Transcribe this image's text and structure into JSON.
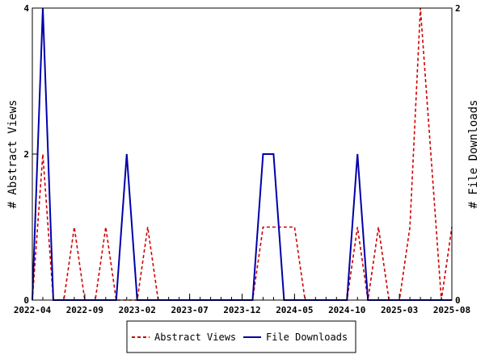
{
  "chart_data": {
    "type": "line",
    "x_tick_labels": [
      "2022-04",
      "2022-09",
      "2023-02",
      "2023-07",
      "2023-12",
      "2024-05",
      "2024-10",
      "2025-03",
      "2025-08"
    ],
    "x_tick_months": [
      0,
      5,
      10,
      15,
      20,
      25,
      30,
      35,
      40
    ],
    "left_axis": {
      "label": "# Abstract Views",
      "ylim": [
        0,
        4
      ],
      "ticks": [
        "0",
        "2",
        "4"
      ]
    },
    "right_axis": {
      "label": "# File Downloads",
      "ylim": [
        0,
        2
      ],
      "ticks": [
        "0",
        "2"
      ]
    },
    "grid": false,
    "legend_placement": "bottom-center",
    "series": [
      {
        "name": "Abstract Views",
        "axis": "left",
        "color": "#cc0000",
        "style": "dashed",
        "points": [
          [
            0,
            0
          ],
          [
            1,
            2
          ],
          [
            2,
            0
          ],
          [
            3,
            0
          ],
          [
            4,
            1
          ],
          [
            5,
            0
          ],
          [
            6,
            0
          ],
          [
            7,
            1
          ],
          [
            8,
            0
          ],
          [
            9,
            0
          ],
          [
            10,
            0
          ],
          [
            11,
            1
          ],
          [
            12,
            0
          ],
          [
            13,
            0
          ],
          [
            14,
            0
          ],
          [
            15,
            0
          ],
          [
            16,
            0
          ],
          [
            17,
            0
          ],
          [
            18,
            0
          ],
          [
            19,
            0
          ],
          [
            20,
            0
          ],
          [
            21,
            0
          ],
          [
            22,
            1
          ],
          [
            23,
            1
          ],
          [
            24,
            1
          ],
          [
            25,
            1
          ],
          [
            26,
            0
          ],
          [
            27,
            0
          ],
          [
            28,
            0
          ],
          [
            29,
            0
          ],
          [
            30,
            0
          ],
          [
            31,
            1
          ],
          [
            32,
            0
          ],
          [
            33,
            1
          ],
          [
            34,
            0
          ],
          [
            35,
            0
          ],
          [
            36,
            1
          ],
          [
            37,
            4
          ],
          [
            38,
            2
          ],
          [
            39,
            0
          ],
          [
            40,
            1
          ]
        ]
      },
      {
        "name": "File Downloads",
        "axis": "right",
        "color": "#0000aa",
        "style": "solid",
        "points": [
          [
            0,
            0
          ],
          [
            1,
            2
          ],
          [
            2,
            0
          ],
          [
            3,
            0
          ],
          [
            4,
            0
          ],
          [
            5,
            0
          ],
          [
            6,
            0
          ],
          [
            7,
            0
          ],
          [
            8,
            0
          ],
          [
            9,
            1
          ],
          [
            10,
            0
          ],
          [
            11,
            0
          ],
          [
            12,
            0
          ],
          [
            13,
            0
          ],
          [
            14,
            0
          ],
          [
            15,
            0
          ],
          [
            16,
            0
          ],
          [
            17,
            0
          ],
          [
            18,
            0
          ],
          [
            19,
            0
          ],
          [
            20,
            0
          ],
          [
            21,
            0
          ],
          [
            22,
            1
          ],
          [
            23,
            1
          ],
          [
            24,
            0
          ],
          [
            25,
            0
          ],
          [
            26,
            0
          ],
          [
            27,
            0
          ],
          [
            28,
            0
          ],
          [
            29,
            0
          ],
          [
            30,
            0
          ],
          [
            31,
            1
          ],
          [
            32,
            0
          ],
          [
            33,
            0
          ],
          [
            34,
            0
          ],
          [
            35,
            0
          ],
          [
            36,
            0
          ],
          [
            37,
            0
          ],
          [
            38,
            0
          ],
          [
            39,
            0
          ],
          [
            40,
            0
          ]
        ]
      }
    ]
  }
}
